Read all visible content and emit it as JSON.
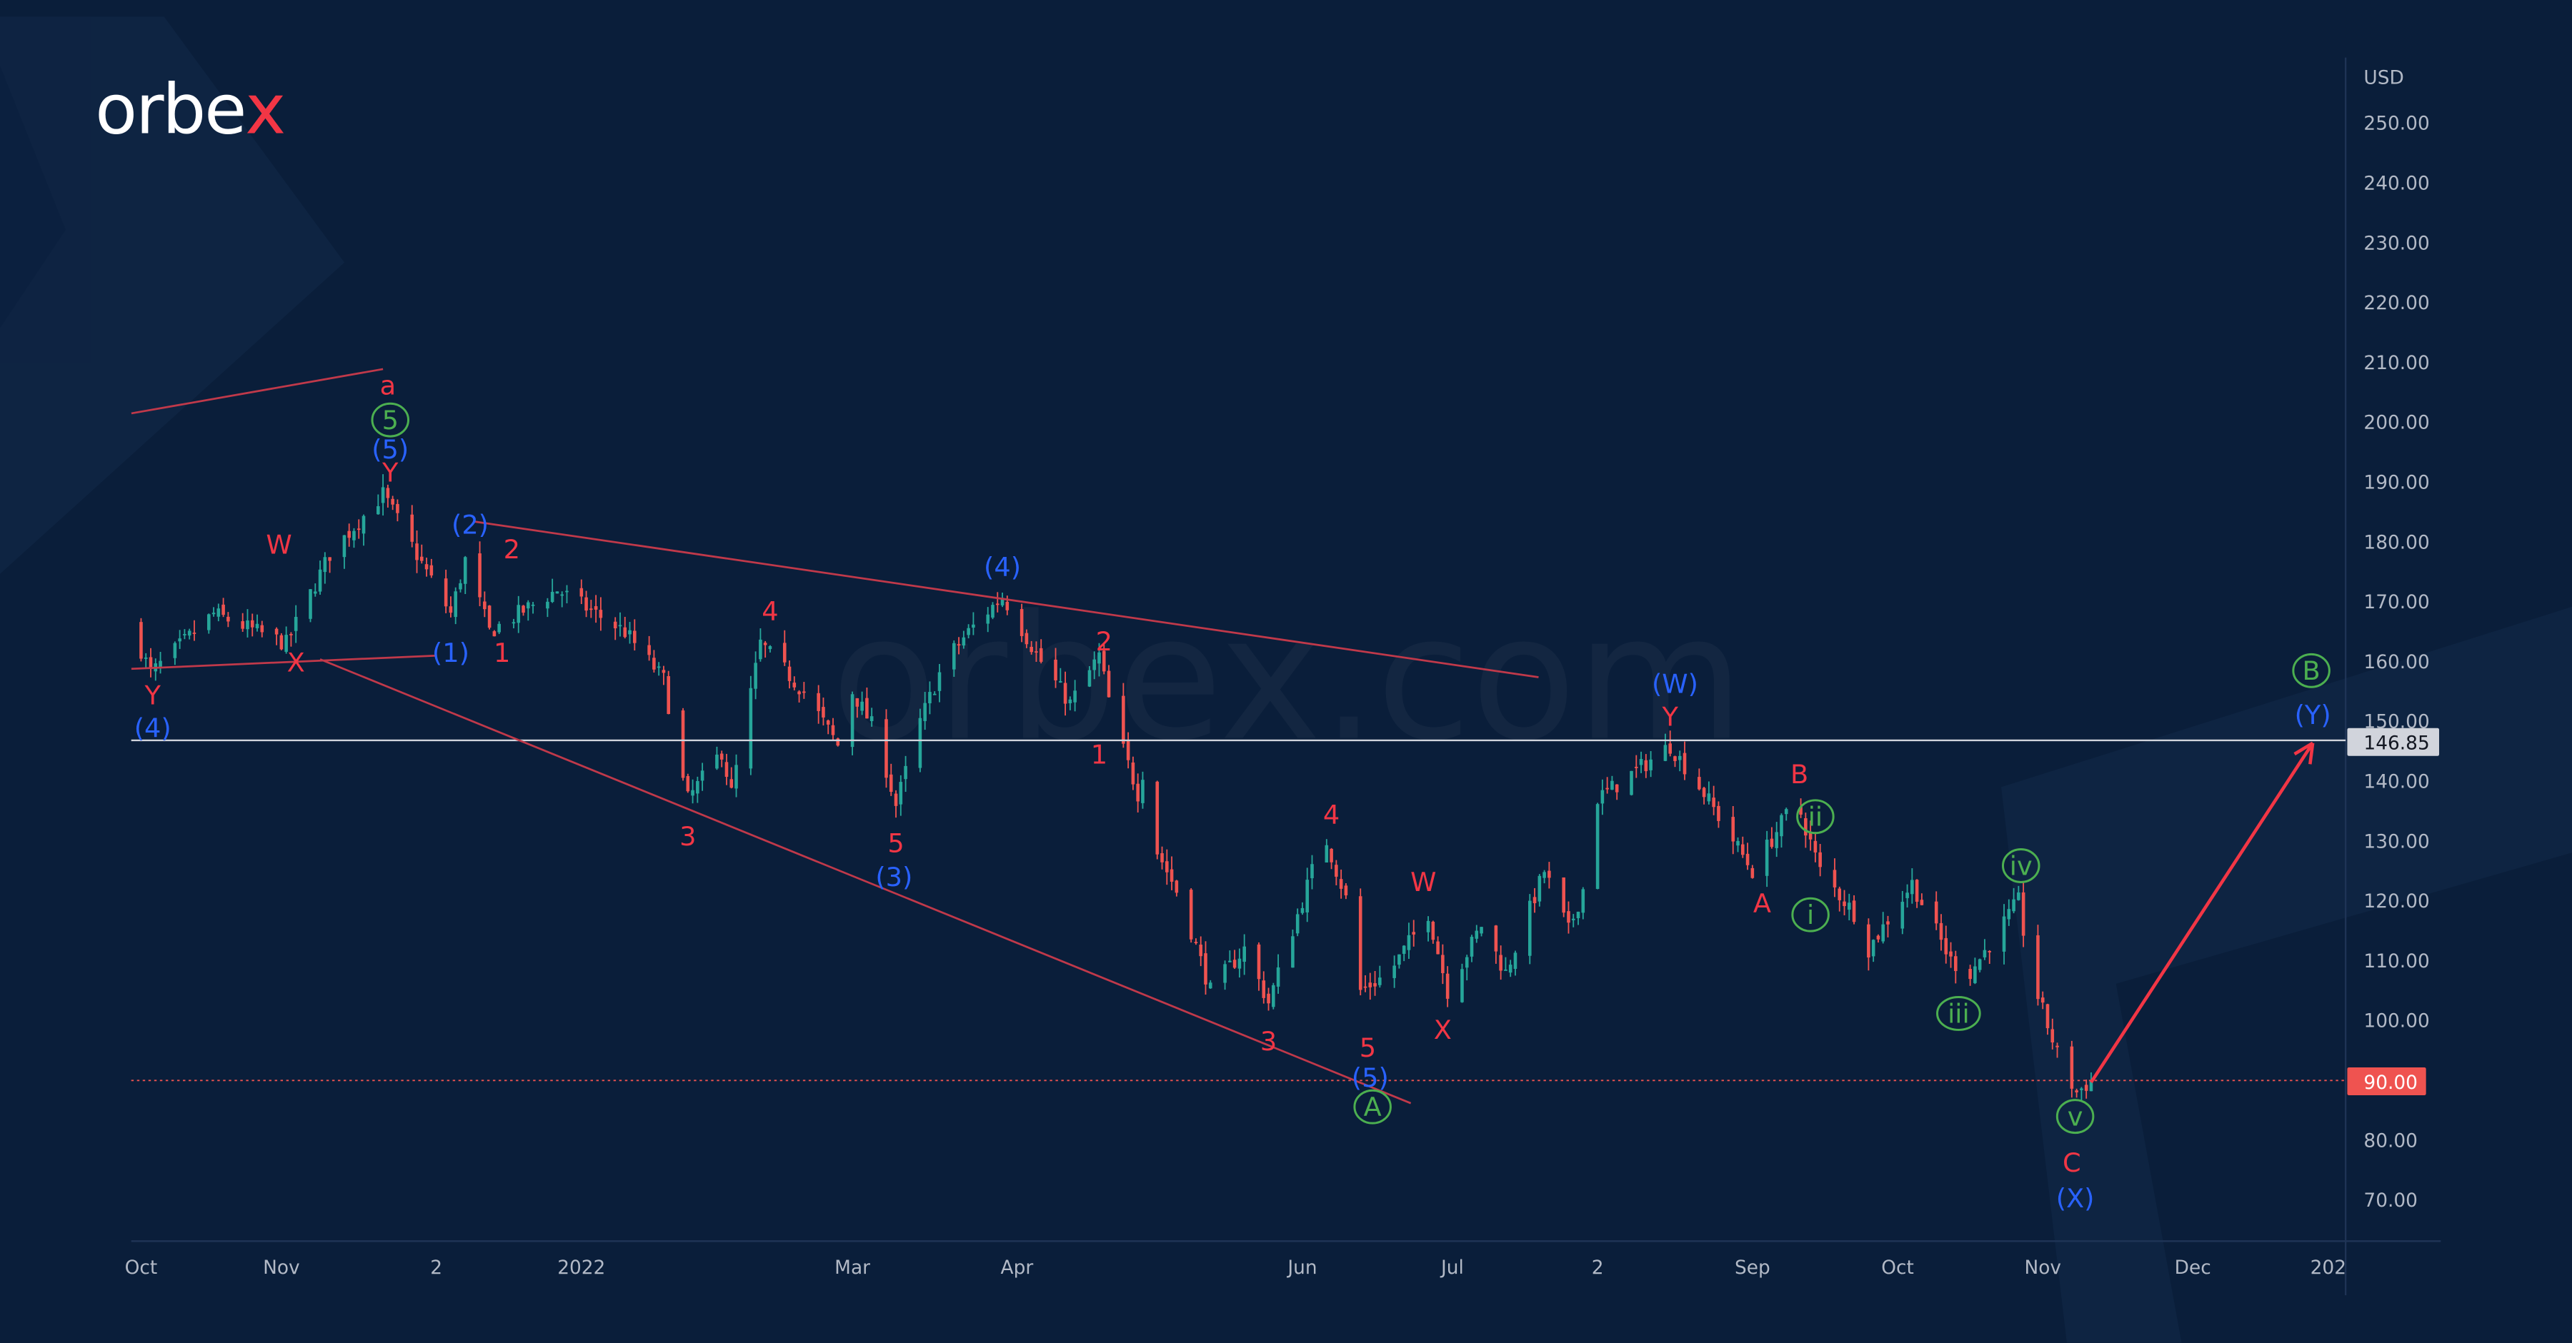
{
  "brand": {
    "logo_text": "orbex",
    "watermark": "orbex.com"
  },
  "colors": {
    "bg": "#0a1e3a",
    "red": "#f23645",
    "blue": "#2962ff",
    "green": "#4caf50",
    "up": "#26a69a",
    "down": "#ef5350",
    "price_tag": "#ef5350",
    "white_tag": "#d1d4dc"
  },
  "chart_data": {
    "type": "candlestick",
    "currency": "USD",
    "ylim": [
      65,
      255
    ],
    "y_ticks": [
      "250.00",
      "240.00",
      "230.00",
      "220.00",
      "210.00",
      "200.00",
      "190.00",
      "180.00",
      "170.00",
      "160.00",
      "150.00",
      "140.00",
      "130.00",
      "120.00",
      "110.00",
      "100.00",
      "80.00",
      "70.00"
    ],
    "y_tick_values": [
      250,
      240,
      230,
      220,
      210,
      200,
      190,
      180,
      170,
      160,
      150,
      140,
      130,
      120,
      110,
      100,
      80,
      70
    ],
    "x_ticks": [
      {
        "label": "Oct",
        "day": 0
      },
      {
        "label": "Nov",
        "day": 29
      },
      {
        "label": "2",
        "day": 61
      },
      {
        "label": "2022",
        "day": 91
      },
      {
        "label": "Mar",
        "day": 147
      },
      {
        "label": "Apr",
        "day": 181
      },
      {
        "label": "Jun",
        "day": 240
      },
      {
        "label": "Jul",
        "day": 271
      },
      {
        "label": "2",
        "day": 301
      },
      {
        "label": "Sep",
        "day": 333
      },
      {
        "label": "Oct",
        "day": 363
      },
      {
        "label": "Nov",
        "day": 393
      },
      {
        "label": "Dec",
        "day": 424
      },
      {
        "label": "202",
        "day": 452
      }
    ],
    "price_path": [
      [
        -2,
        166
      ],
      [
        2,
        158
      ],
      [
        15,
        168
      ],
      [
        30,
        163
      ],
      [
        39,
        178
      ],
      [
        50,
        188
      ],
      [
        59,
        175
      ],
      [
        64,
        168
      ],
      [
        67,
        177
      ],
      [
        72,
        165
      ],
      [
        86,
        172
      ],
      [
        100,
        165
      ],
      [
        108,
        157
      ],
      [
        112,
        140
      ],
      [
        113,
        137
      ],
      [
        120,
        145
      ],
      [
        122,
        138
      ],
      [
        128,
        163
      ],
      [
        137,
        155
      ],
      [
        144,
        146
      ],
      [
        147,
        155
      ],
      [
        152,
        148
      ],
      [
        156,
        136
      ],
      [
        161,
        150
      ],
      [
        166,
        160
      ],
      [
        171,
        165
      ],
      [
        178,
        171
      ],
      [
        186,
        160
      ],
      [
        192,
        153
      ],
      [
        198,
        161
      ],
      [
        201,
        150
      ],
      [
        206,
        138
      ],
      [
        208,
        145
      ],
      [
        209,
        130
      ],
      [
        215,
        120
      ],
      [
        221,
        105
      ],
      [
        228,
        112
      ],
      [
        233,
        103
      ],
      [
        242,
        125
      ],
      [
        245,
        130
      ],
      [
        250,
        118
      ],
      [
        252,
        105
      ],
      [
        258,
        108
      ],
      [
        266,
        118
      ],
      [
        270,
        105
      ],
      [
        277,
        116
      ],
      [
        282,
        108
      ],
      [
        290,
        125
      ],
      [
        295,
        115
      ],
      [
        298,
        122
      ],
      [
        299,
        136
      ],
      [
        306,
        140
      ],
      [
        316,
        146
      ],
      [
        323,
        138
      ],
      [
        333,
        125
      ],
      [
        342,
        137
      ],
      [
        347,
        125
      ],
      [
        354,
        118
      ],
      [
        357,
        112
      ],
      [
        366,
        123
      ],
      [
        374,
        110
      ],
      [
        378,
        108
      ],
      [
        388,
        120
      ],
      [
        390,
        110
      ],
      [
        392,
        104
      ],
      [
        397,
        92
      ],
      [
        400,
        88
      ],
      [
        403,
        90
      ]
    ],
    "gaps_after_day": [
      208,
      298,
      390
    ],
    "horizontal_level": {
      "value": "146.85",
      "price": 146.85
    },
    "current_price": {
      "value": "90.00",
      "price": 90
    },
    "trendlines": [
      {
        "from": [
          -2,
          201.5
        ],
        "to": [
          50,
          208.9
        ]
      },
      {
        "from": [
          -2,
          158.8
        ],
        "to": [
          60.7,
          161
        ]
      },
      {
        "from": [
          37,
          160.4
        ],
        "to": [
          262.4,
          86.2
        ]
      },
      {
        "from": [
          69,
          183.4
        ],
        "to": [
          288.8,
          157.4
        ]
      }
    ],
    "projection_arrow": {
      "from": [
        403,
        89.7
      ],
      "to": [
        448.8,
        146.4
      ]
    },
    "wave_labels": [
      {
        "text": "a",
        "c": "red",
        "d": 51,
        "p": 206.2
      },
      {
        "text": "5",
        "c": "green",
        "circle": true,
        "d": 51.5,
        "p": 200.4
      },
      {
        "text": "(5)",
        "c": "blue",
        "d": 51.5,
        "p": 195.5
      },
      {
        "text": "Y",
        "c": "red",
        "d": 51.5,
        "p": 191.6
      },
      {
        "text": "W",
        "c": "red",
        "d": 28.5,
        "p": 179.6
      },
      {
        "text": "X",
        "c": "red",
        "d": 32,
        "p": 159.9
      },
      {
        "text": "(1)",
        "c": "blue",
        "d": 64,
        "p": 161.5
      },
      {
        "text": "1",
        "c": "red",
        "d": 74.6,
        "p": 161.5
      },
      {
        "text": "(2)",
        "c": "blue",
        "d": 68,
        "p": 182.9
      },
      {
        "text": "2",
        "c": "red",
        "d": 76.6,
        "p": 178.8
      },
      {
        "text": "Y",
        "c": "red",
        "d": 2.4,
        "p": 154.4
      },
      {
        "text": "(4)",
        "c": "blue",
        "d": 2.4,
        "p": 148.9
      },
      {
        "text": "4",
        "c": "red",
        "d": 130,
        "p": 168.4
      },
      {
        "text": "3",
        "c": "red",
        "d": 113,
        "p": 130.8
      },
      {
        "text": "5",
        "c": "red",
        "d": 156,
        "p": 129.7
      },
      {
        "text": "(3)",
        "c": "blue",
        "d": 155.6,
        "p": 124
      },
      {
        "text": "(4)",
        "c": "blue",
        "d": 178,
        "p": 175.8
      },
      {
        "text": "2",
        "c": "red",
        "d": 199,
        "p": 163.4
      },
      {
        "text": "1",
        "c": "red",
        "d": 198,
        "p": 144.5
      },
      {
        "text": "4",
        "c": "red",
        "d": 246,
        "p": 134.4
      },
      {
        "text": "W",
        "c": "red",
        "d": 265,
        "p": 123.2
      },
      {
        "text": "3",
        "c": "red",
        "d": 233,
        "p": 96.6
      },
      {
        "text": "5",
        "c": "red",
        "d": 253.5,
        "p": 95.5
      },
      {
        "text": "(5)",
        "c": "blue",
        "d": 254,
        "p": 90.5
      },
      {
        "text": "A",
        "c": "green",
        "circle": true,
        "d": 254.5,
        "p": 85.6
      },
      {
        "text": "X",
        "c": "red",
        "d": 269,
        "p": 98.5
      },
      {
        "text": "(W)",
        "c": "blue",
        "d": 317,
        "p": 156.3
      },
      {
        "text": "Y",
        "c": "red",
        "d": 316,
        "p": 150.8
      },
      {
        "text": "B",
        "c": "red",
        "d": 342.7,
        "p": 141.2
      },
      {
        "text": "ii",
        "c": "green",
        "circle": true,
        "d": 346,
        "p": 134.1
      },
      {
        "text": "A",
        "c": "red",
        "d": 335,
        "p": 119.6
      },
      {
        "text": "i",
        "c": "green",
        "circle": true,
        "d": 345,
        "p": 117.7
      },
      {
        "text": "iv",
        "c": "green",
        "circle": true,
        "d": 388.5,
        "p": 125.9
      },
      {
        "text": "iii",
        "c": "green",
        "circle": true,
        "d": 375.6,
        "p": 101.2
      },
      {
        "text": "v",
        "c": "green",
        "circle": true,
        "d": 399.7,
        "p": 84
      },
      {
        "text": "C",
        "c": "red",
        "d": 399,
        "p": 76.3
      },
      {
        "text": "(X)",
        "c": "blue",
        "d": 399.7,
        "p": 70.3
      },
      {
        "text": "B",
        "c": "green",
        "circle": true,
        "d": 448.5,
        "p": 158.5
      },
      {
        "text": "(Y)",
        "c": "blue",
        "d": 448.8,
        "p": 151.1
      }
    ]
  }
}
